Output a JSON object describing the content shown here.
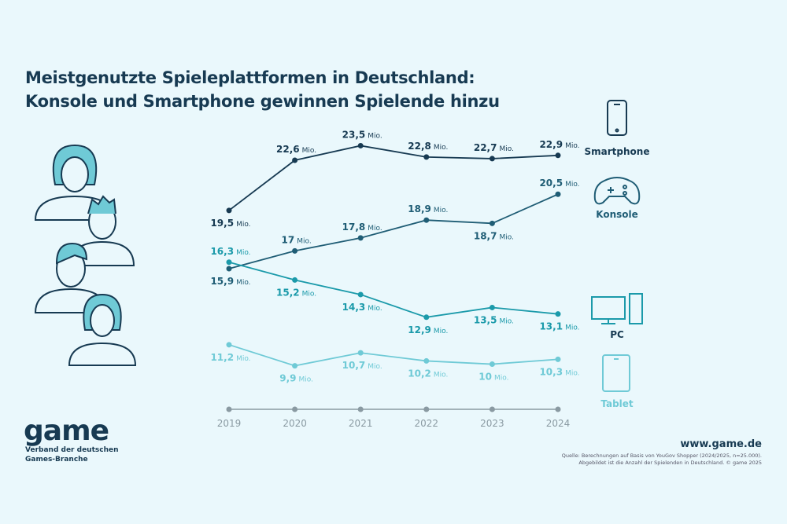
{
  "title_line1": "Meistgenutzte Spieleplattformen in Deutschland:",
  "title_line2": "Konsole und Smartphone gewinnen Spielende hinzu",
  "logo": "game",
  "logo_sub1": "Verband der deutschen",
  "logo_sub2": "Games-Branche",
  "url": "www.game.de",
  "source1": "Quelle: Berechnungen auf Basis von YouGov Shopper (2024/2025, n=25.000).",
  "source2": "Abgebildet ist die Anzahl der Spielenden in Deutschland. © game 2025",
  "unit": "Mio.",
  "chart_data": {
    "type": "line",
    "title": "Meistgenutzte Spieleplattformen in Deutschland: Konsole und Smartphone gewinnen Spielende hinzu",
    "x": [
      "2019",
      "2020",
      "2021",
      "2022",
      "2023",
      "2024"
    ],
    "grid": false,
    "legend": "right (icons with labels)",
    "series": [
      {
        "name": "Smartphone",
        "icon": "smartphone-icon",
        "color": "#173a52",
        "values": [
          19.5,
          22.6,
          23.5,
          22.8,
          22.7,
          22.9
        ],
        "labels": [
          "19,5",
          "22,6",
          "23,5",
          "22,8",
          "22,7",
          "22,9"
        ]
      },
      {
        "name": "Konsole",
        "icon": "gamepad-icon",
        "color": "#1f5d75",
        "values": [
          15.9,
          17,
          17.8,
          18.9,
          18.7,
          20.5
        ],
        "labels": [
          "15,9",
          "17",
          "17,8",
          "18,9",
          "18,7",
          "20,5"
        ]
      },
      {
        "name": "PC",
        "icon": "desktop-pc-icon",
        "color": "#1b9aaa",
        "values": [
          16.3,
          15.2,
          14.3,
          12.9,
          13.5,
          13.1
        ],
        "labels": [
          "16,3",
          "15,2",
          "14,3",
          "12,9",
          "13,5",
          "13,1"
        ]
      },
      {
        "name": "Tablet",
        "icon": "tablet-icon",
        "color": "#6fcad6",
        "values": [
          11.2,
          9.9,
          10.7,
          10.2,
          10,
          10.3
        ],
        "labels": [
          "11,2",
          "9,9",
          "10,7",
          "10,2",
          "10",
          "10,3"
        ]
      }
    ]
  }
}
